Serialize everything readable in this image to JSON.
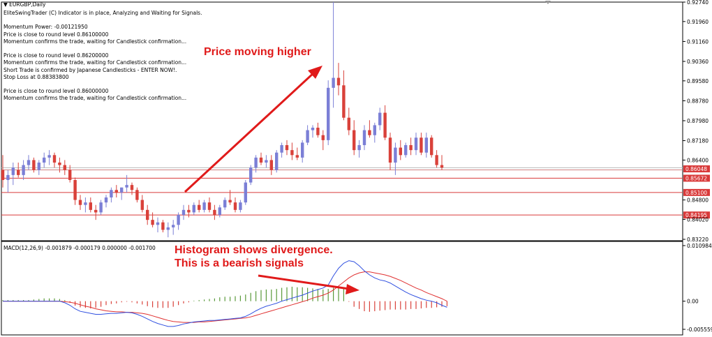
{
  "header": {
    "symbol": "EURGBP,Daily",
    "lines": [
      "EliteSwingTrader (C) Indicator is in place, Analyzing and Waiting for Signals.",
      "",
      "Momentum Power: -0.00121950",
      "Price is close to round level 0.86100000",
      "Momentum confirms the trade, waiting for Candlestick confirmation...",
      "",
      "Price is close to round level 0.86200000",
      "Momentum confirms the trade, waiting for Candlestick confirmation...",
      "Short Trade is confirmed by Japanese Candlesticks - ENTER NOW!.",
      "Stop Loss at 0.88383800",
      "",
      "Price is close to round level 0.86000000",
      "Momentum confirms the trade, waiting for Candlestick confirmation..."
    ]
  },
  "annotations": {
    "price": "Price moving higher",
    "histogram_line1": "Histogram shows divergence.",
    "histogram_line2": "This is a bearish signals"
  },
  "macd_label": "MACD(12,26,9) -0.001879 -0.000179 0.000000 -0.001700",
  "colors": {
    "bull": "#7b7fd6",
    "bear": "#d9413a",
    "level": "#d93a3a",
    "grid": "#bbbbbb",
    "arrow": "#e01a1a",
    "macd": "#3050e0",
    "signal": "#e03030",
    "hist_pos": "#5a9a3a",
    "hist_neg": "#d9413a"
  },
  "chart_data": [
    {
      "type": "candlestick",
      "title": "EURGBP,Daily",
      "ylim": [
        0.8322,
        0.9274
      ],
      "yticks": [
        "0.92740",
        "0.91960",
        "0.91160",
        "0.90360",
        "0.89580",
        "0.88780",
        "0.87980",
        "0.87180",
        "0.86400",
        "0.84800",
        "0.84020",
        "0.83220"
      ],
      "levels": [
        {
          "value": 0.86048,
          "label": "0.86048",
          "current": true
        },
        {
          "value": 0.85672,
          "label": "0.85672"
        },
        {
          "value": 0.851,
          "label": "0.85100"
        },
        {
          "value": 0.84195,
          "label": "0.84195"
        }
      ],
      "ohlc": [
        [
          0.86,
          0.866,
          0.853,
          0.856
        ],
        [
          0.856,
          0.86,
          0.851,
          0.858
        ],
        [
          0.858,
          0.863,
          0.854,
          0.861
        ],
        [
          0.86,
          0.863,
          0.857,
          0.858
        ],
        [
          0.858,
          0.864,
          0.856,
          0.862
        ],
        [
          0.862,
          0.866,
          0.86,
          0.864
        ],
        [
          0.864,
          0.865,
          0.859,
          0.86
        ],
        [
          0.86,
          0.864,
          0.858,
          0.863
        ],
        [
          0.863,
          0.867,
          0.861,
          0.865
        ],
        [
          0.865,
          0.868,
          0.862,
          0.866
        ],
        [
          0.866,
          0.867,
          0.861,
          0.863
        ],
        [
          0.863,
          0.865,
          0.859,
          0.862
        ],
        [
          0.862,
          0.864,
          0.858,
          0.86
        ],
        [
          0.86,
          0.862,
          0.855,
          0.856
        ],
        [
          0.856,
          0.857,
          0.846,
          0.848
        ],
        [
          0.848,
          0.85,
          0.844,
          0.846
        ],
        [
          0.846,
          0.849,
          0.843,
          0.847
        ],
        [
          0.847,
          0.849,
          0.843,
          0.844
        ],
        [
          0.844,
          0.846,
          0.84,
          0.843
        ],
        [
          0.843,
          0.848,
          0.842,
          0.847
        ],
        [
          0.847,
          0.85,
          0.845,
          0.849
        ],
        [
          0.849,
          0.853,
          0.847,
          0.852
        ],
        [
          0.852,
          0.854,
          0.849,
          0.851
        ],
        [
          0.851,
          0.853,
          0.848,
          0.853
        ],
        [
          0.853,
          0.858,
          0.851,
          0.854
        ],
        [
          0.854,
          0.855,
          0.85,
          0.852
        ],
        [
          0.852,
          0.853,
          0.847,
          0.848
        ],
        [
          0.848,
          0.85,
          0.843,
          0.844
        ],
        [
          0.844,
          0.846,
          0.838,
          0.84
        ],
        [
          0.84,
          0.843,
          0.837,
          0.838
        ],
        [
          0.838,
          0.841,
          0.835,
          0.839
        ],
        [
          0.839,
          0.84,
          0.835,
          0.836
        ],
        [
          0.836,
          0.839,
          0.833,
          0.837
        ],
        [
          0.837,
          0.84,
          0.834,
          0.838
        ],
        [
          0.838,
          0.843,
          0.836,
          0.842
        ],
        [
          0.842,
          0.846,
          0.84,
          0.844
        ],
        [
          0.844,
          0.846,
          0.841,
          0.843
        ],
        [
          0.843,
          0.847,
          0.842,
          0.846
        ],
        [
          0.846,
          0.848,
          0.843,
          0.844
        ],
        [
          0.844,
          0.848,
          0.843,
          0.847
        ],
        [
          0.847,
          0.849,
          0.843,
          0.844
        ],
        [
          0.844,
          0.846,
          0.84,
          0.842
        ],
        [
          0.842,
          0.846,
          0.841,
          0.845
        ],
        [
          0.845,
          0.849,
          0.844,
          0.848
        ],
        [
          0.848,
          0.852,
          0.846,
          0.847
        ],
        [
          0.847,
          0.849,
          0.843,
          0.844
        ],
        [
          0.844,
          0.848,
          0.843,
          0.847
        ],
        [
          0.847,
          0.856,
          0.846,
          0.855
        ],
        [
          0.855,
          0.862,
          0.854,
          0.861
        ],
        [
          0.861,
          0.866,
          0.859,
          0.865
        ],
        [
          0.865,
          0.867,
          0.862,
          0.863
        ],
        [
          0.863,
          0.866,
          0.861,
          0.864
        ],
        [
          0.864,
          0.866,
          0.858,
          0.86
        ],
        [
          0.86,
          0.868,
          0.859,
          0.867
        ],
        [
          0.867,
          0.871,
          0.865,
          0.87
        ],
        [
          0.87,
          0.872,
          0.866,
          0.868
        ],
        [
          0.868,
          0.871,
          0.864,
          0.866
        ],
        [
          0.866,
          0.869,
          0.864,
          0.865
        ],
        [
          0.865,
          0.872,
          0.863,
          0.871
        ],
        [
          0.871,
          0.878,
          0.87,
          0.876
        ],
        [
          0.876,
          0.878,
          0.873,
          0.877
        ],
        [
          0.877,
          0.879,
          0.873,
          0.874
        ],
        [
          0.874,
          0.876,
          0.868,
          0.872
        ],
        [
          0.872,
          0.896,
          0.87,
          0.893
        ],
        [
          0.893,
          0.9274,
          0.885,
          0.897
        ],
        [
          0.897,
          0.903,
          0.89,
          0.894
        ],
        [
          0.894,
          0.9,
          0.88,
          0.881
        ],
        [
          0.881,
          0.885,
          0.874,
          0.876
        ],
        [
          0.876,
          0.88,
          0.866,
          0.868
        ],
        [
          0.868,
          0.872,
          0.865,
          0.87
        ],
        [
          0.87,
          0.878,
          0.868,
          0.876
        ],
        [
          0.876,
          0.88,
          0.873,
          0.874
        ],
        [
          0.874,
          0.879,
          0.871,
          0.878
        ],
        [
          0.878,
          0.885,
          0.876,
          0.883
        ],
        [
          0.883,
          0.886,
          0.872,
          0.873
        ],
        [
          0.873,
          0.875,
          0.86,
          0.863
        ],
        [
          0.863,
          0.871,
          0.858,
          0.869
        ],
        [
          0.869,
          0.872,
          0.864,
          0.866
        ],
        [
          0.866,
          0.871,
          0.865,
          0.87
        ],
        [
          0.87,
          0.873,
          0.866,
          0.868
        ],
        [
          0.868,
          0.875,
          0.866,
          0.873
        ],
        [
          0.873,
          0.875,
          0.866,
          0.867
        ],
        [
          0.867,
          0.875,
          0.865,
          0.873
        ],
        [
          0.873,
          0.874,
          0.865,
          0.866
        ],
        [
          0.866,
          0.868,
          0.861,
          0.862
        ],
        [
          0.862,
          0.866,
          0.86,
          0.861
        ]
      ]
    },
    {
      "type": "macd",
      "title": "MACD(12,26,9)",
      "ylim": [
        -0.005559,
        0.010984
      ],
      "yticks": [
        "0.010984",
        "0.00",
        "-0.005559"
      ],
      "macd": [
        0.0,
        0.0,
        0.0,
        0.0,
        0.0,
        0.0,
        0.0,
        0.0,
        0.0,
        0.0,
        0.0,
        0.0,
        -0.0003,
        -0.0008,
        -0.0015,
        -0.002,
        -0.0022,
        -0.0024,
        -0.0026,
        -0.0026,
        -0.0025,
        -0.0024,
        -0.0024,
        -0.0023,
        -0.0022,
        -0.0023,
        -0.0026,
        -0.003,
        -0.0035,
        -0.004,
        -0.0044,
        -0.0047,
        -0.005,
        -0.005,
        -0.0048,
        -0.0045,
        -0.0043,
        -0.0041,
        -0.004,
        -0.0039,
        -0.0038,
        -0.0038,
        -0.0037,
        -0.0036,
        -0.0035,
        -0.0034,
        -0.0033,
        -0.003,
        -0.0025,
        -0.0019,
        -0.0014,
        -0.001,
        -0.0007,
        -0.0004,
        0.0,
        0.0003,
        0.0006,
        0.0009,
        0.0012,
        0.0016,
        0.002,
        0.0023,
        0.0026,
        0.0032,
        0.005,
        0.0065,
        0.0075,
        0.008,
        0.0078,
        0.007,
        0.006,
        0.0052,
        0.0046,
        0.0042,
        0.004,
        0.0036,
        0.003,
        0.0024,
        0.0018,
        0.0013,
        0.0009,
        0.0005,
        0.0002,
        0.0,
        -0.0003,
        -0.0008,
        -0.0012
      ],
      "signal": [
        0.0,
        0.0,
        0.0,
        0.0,
        0.0,
        0.0,
        0.0,
        0.0,
        0.0,
        0.0,
        0.0,
        0.0,
        -0.0001,
        -0.0002,
        -0.0004,
        -0.0007,
        -0.001,
        -0.0012,
        -0.0015,
        -0.0017,
        -0.0019,
        -0.002,
        -0.0021,
        -0.0021,
        -0.0022,
        -0.0022,
        -0.0023,
        -0.0024,
        -0.0026,
        -0.0029,
        -0.0032,
        -0.0035,
        -0.0038,
        -0.004,
        -0.0041,
        -0.0042,
        -0.0042,
        -0.0042,
        -0.0041,
        -0.0041,
        -0.004,
        -0.0039,
        -0.0038,
        -0.0037,
        -0.0036,
        -0.0035,
        -0.0034,
        -0.0033,
        -0.0031,
        -0.0028,
        -0.0025,
        -0.0022,
        -0.0019,
        -0.0016,
        -0.0013,
        -0.001,
        -0.0007,
        -0.0004,
        -0.0001,
        0.0002,
        0.0006,
        0.0009,
        0.0012,
        0.0016,
        0.0022,
        0.003,
        0.0038,
        0.0046,
        0.0052,
        0.0056,
        0.0058,
        0.0058,
        0.0056,
        0.0054,
        0.0052,
        0.0049,
        0.0045,
        0.0041,
        0.0036,
        0.0031,
        0.0026,
        0.0022,
        0.0017,
        0.0013,
        0.0009,
        0.0005,
        0.0
      ],
      "histogram": [
        0.0002,
        0.0002,
        0.0002,
        0.0002,
        0.0002,
        0.0002,
        0.0003,
        0.0004,
        0.0005,
        0.0005,
        0.0005,
        0.0004,
        0.0002,
        -0.0003,
        -0.0008,
        -0.0011,
        -0.0012,
        -0.0013,
        -0.0012,
        -0.001,
        -0.0007,
        -0.0005,
        -0.0004,
        -0.0002,
        -0.0001,
        -0.0002,
        -0.0004,
        -0.0006,
        -0.0009,
        -0.0011,
        -0.0012,
        -0.0012,
        -0.0012,
        -0.001,
        -0.0007,
        -0.0004,
        -0.0002,
        0.0001,
        0.0002,
        0.0003,
        0.0004,
        0.0005,
        0.0007,
        0.0008,
        0.0008,
        0.0009,
        0.001,
        0.0012,
        0.0015,
        0.0018,
        0.002,
        0.0021,
        0.0021,
        0.0022,
        0.0024,
        0.0025,
        0.0026,
        0.0025,
        0.0025,
        0.0024,
        0.0023,
        0.0022,
        0.0021,
        0.0022,
        0.0024,
        0.0024,
        0.0023,
        -0.0001,
        -0.001,
        -0.0014,
        -0.0018,
        -0.0019,
        -0.0018,
        -0.0017,
        -0.0016,
        -0.0015,
        -0.0015,
        -0.0015,
        -0.0015,
        -0.0014,
        -0.0014,
        -0.0013,
        -0.0012,
        -0.0012,
        -0.0011,
        -0.001,
        -0.0009
      ]
    }
  ]
}
